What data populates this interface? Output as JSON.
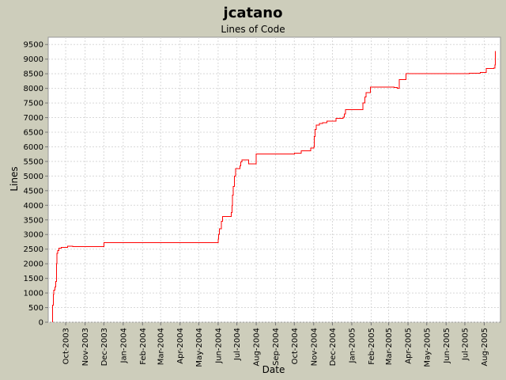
{
  "chart_data": {
    "type": "line",
    "title": "jcatano",
    "subtitle": "Lines of Code",
    "xlabel": "Date",
    "ylabel": "Lines",
    "ylim": [
      0,
      9750
    ],
    "y_ticks": [
      0,
      500,
      1000,
      1500,
      2000,
      2500,
      3000,
      3500,
      4000,
      4500,
      5000,
      5500,
      6000,
      6500,
      7000,
      7500,
      8000,
      8500,
      9000,
      9500
    ],
    "xlim": [
      "2003-09-03",
      "2005-08-27"
    ],
    "x_ticks": [
      {
        "date": "2003-10-01",
        "label": "Oct-2003"
      },
      {
        "date": "2003-11-01",
        "label": "Nov-2003"
      },
      {
        "date": "2003-12-01",
        "label": "Dec-2003"
      },
      {
        "date": "2004-01-01",
        "label": "Jan-2004"
      },
      {
        "date": "2004-02-01",
        "label": "Feb-2004"
      },
      {
        "date": "2004-03-01",
        "label": "Mar-2004"
      },
      {
        "date": "2004-04-01",
        "label": "Apr-2004"
      },
      {
        "date": "2004-05-01",
        "label": "May-2004"
      },
      {
        "date": "2004-06-01",
        "label": "Jun-2004"
      },
      {
        "date": "2004-07-01",
        "label": "Jul-2004"
      },
      {
        "date": "2004-08-01",
        "label": "Aug-2004"
      },
      {
        "date": "2004-09-01",
        "label": "Sep-2004"
      },
      {
        "date": "2004-10-01",
        "label": "Oct-2004"
      },
      {
        "date": "2004-11-01",
        "label": "Nov-2004"
      },
      {
        "date": "2004-12-01",
        "label": "Dec-2004"
      },
      {
        "date": "2005-01-01",
        "label": "Jan-2005"
      },
      {
        "date": "2005-02-01",
        "label": "Feb-2005"
      },
      {
        "date": "2005-03-01",
        "label": "Mar-2005"
      },
      {
        "date": "2005-04-01",
        "label": "Apr-2005"
      },
      {
        "date": "2005-05-01",
        "label": "May-2005"
      },
      {
        "date": "2005-06-01",
        "label": "Jun-2005"
      },
      {
        "date": "2005-07-01",
        "label": "Jul-2005"
      },
      {
        "date": "2005-08-01",
        "label": "Aug-2005"
      }
    ],
    "grid": true,
    "series": [
      {
        "name": "",
        "color": "#ff0000",
        "step": true,
        "points": [
          [
            "2003-09-10",
            0
          ],
          [
            "2003-09-10",
            580
          ],
          [
            "2003-09-11",
            600
          ],
          [
            "2003-09-11",
            950
          ],
          [
            "2003-09-12",
            1100
          ],
          [
            "2003-09-14",
            1200
          ],
          [
            "2003-09-15",
            1300
          ],
          [
            "2003-09-15",
            1400
          ],
          [
            "2003-09-16",
            1400
          ],
          [
            "2003-09-16",
            2000
          ],
          [
            "2003-09-17",
            2350
          ],
          [
            "2003-09-18",
            2450
          ],
          [
            "2003-09-20",
            2530
          ],
          [
            "2003-09-24",
            2560
          ],
          [
            "2003-10-04",
            2600
          ],
          [
            "2003-10-12",
            2600
          ],
          [
            "2003-10-12",
            2580
          ],
          [
            "2003-12-01",
            2580
          ],
          [
            "2003-12-01",
            2720
          ],
          [
            "2004-05-31",
            2720
          ],
          [
            "2004-06-01",
            2850
          ],
          [
            "2004-06-02",
            3000
          ],
          [
            "2004-06-03",
            3200
          ],
          [
            "2004-06-04",
            3200
          ],
          [
            "2004-06-06",
            3450
          ],
          [
            "2004-06-08",
            3620
          ],
          [
            "2004-06-20",
            3620
          ],
          [
            "2004-06-22",
            3750
          ],
          [
            "2004-06-23",
            4000
          ],
          [
            "2004-06-24",
            4350
          ],
          [
            "2004-06-25",
            4650
          ],
          [
            "2004-06-27",
            5000
          ],
          [
            "2004-06-29",
            5250
          ],
          [
            "2004-07-06",
            5250
          ],
          [
            "2004-07-06",
            5350
          ],
          [
            "2004-07-07",
            5480
          ],
          [
            "2004-07-09",
            5550
          ],
          [
            "2004-07-20",
            5550
          ],
          [
            "2004-07-20",
            5420
          ],
          [
            "2004-08-01",
            5420
          ],
          [
            "2004-08-01",
            5750
          ],
          [
            "2004-10-01",
            5750
          ],
          [
            "2004-10-01",
            5780
          ],
          [
            "2004-10-12",
            5780
          ],
          [
            "2004-10-12",
            5860
          ],
          [
            "2004-10-27",
            5860
          ],
          [
            "2004-10-27",
            5960
          ],
          [
            "2004-11-01",
            6000
          ],
          [
            "2004-11-02",
            6350
          ],
          [
            "2004-11-03",
            6600
          ],
          [
            "2004-11-05",
            6750
          ],
          [
            "2004-11-10",
            6800
          ],
          [
            "2004-11-15",
            6830
          ],
          [
            "2004-11-22",
            6880
          ],
          [
            "2004-12-05",
            6880
          ],
          [
            "2004-12-07",
            6980
          ],
          [
            "2004-12-18",
            7020
          ],
          [
            "2004-12-20",
            7120
          ],
          [
            "2004-12-22",
            7270
          ],
          [
            "2005-01-17",
            7270
          ],
          [
            "2005-01-19",
            7500
          ],
          [
            "2005-01-22",
            7700
          ],
          [
            "2005-01-24",
            7850
          ],
          [
            "2005-01-31",
            8050
          ],
          [
            "2005-03-08",
            8050
          ],
          [
            "2005-03-10",
            8030
          ],
          [
            "2005-03-15",
            8000
          ],
          [
            "2005-03-18",
            8300
          ],
          [
            "2005-03-28",
            8300
          ],
          [
            "2005-03-29",
            8500
          ],
          [
            "2005-07-01",
            8500
          ],
          [
            "2005-07-08",
            8520
          ],
          [
            "2005-07-24",
            8520
          ],
          [
            "2005-07-26",
            8550
          ],
          [
            "2005-08-02",
            8550
          ],
          [
            "2005-08-04",
            8680
          ],
          [
            "2005-08-16",
            8700
          ],
          [
            "2005-08-18",
            8800
          ],
          [
            "2005-08-19",
            9280
          ]
        ]
      }
    ]
  }
}
